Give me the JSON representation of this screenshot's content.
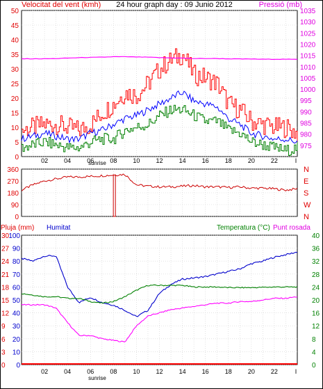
{
  "chart_data": [
    {
      "type": "line",
      "title": "24 hour graph day : 09 Junio 2012",
      "left_label": "Velocitat del vent (kmh)",
      "right_label": "Pressió (mb)",
      "ylim_left": [
        0,
        50
      ],
      "ylim_right": [
        970,
        1035
      ],
      "left_ticks": [
        "0",
        "5",
        "10",
        "15",
        "20",
        "25",
        "30",
        "35",
        "40",
        "45",
        "50"
      ],
      "right_ticks": [
        "975",
        "980",
        "985",
        "990",
        "995",
        "1000",
        "1005",
        "1010",
        "1015",
        "1020",
        "1025",
        "1030",
        "1035"
      ],
      "x_ticks": [
        "02",
        "04",
        "06",
        "08",
        "10",
        "12",
        "14",
        "16",
        "18",
        "20",
        "22",
        "I"
      ],
      "x_extra_label": "sunrise",
      "hours": [
        0,
        1,
        2,
        3,
        4,
        5,
        6,
        7,
        8,
        9,
        10,
        11,
        12,
        13,
        14,
        15,
        16,
        17,
        18,
        19,
        20,
        21,
        22,
        23,
        24
      ],
      "series": [
        {
          "key": "gust",
          "color": "#ff0000",
          "values": [
            9,
            10,
            11,
            11,
            10,
            9,
            11,
            15,
            18,
            22,
            21,
            25,
            30,
            33,
            35,
            28,
            27,
            25,
            18,
            16,
            12,
            11,
            10,
            10,
            8
          ]
        },
        {
          "key": "wind",
          "color": "#0000ff",
          "values": [
            6,
            7,
            8,
            7,
            6,
            6,
            8,
            9,
            11,
            13,
            14,
            16,
            18,
            20,
            22,
            19,
            18,
            17,
            13,
            11,
            8,
            7,
            6,
            6,
            5
          ]
        },
        {
          "key": "gust_dir_mean",
          "color": "#008000",
          "values": [
            3,
            4,
            5,
            4,
            3,
            3,
            5,
            6,
            6,
            9,
            10,
            11,
            14,
            16,
            16,
            14,
            12,
            12,
            9,
            8,
            5,
            4,
            3,
            2,
            3
          ]
        },
        {
          "key": "pressure",
          "color": "#ff00ff",
          "axis": "right",
          "values": [
            1013.5,
            1013.5,
            1013.5,
            1013.6,
            1013.8,
            1014,
            1014.1,
            1014.2,
            1014.4,
            1014.4,
            1014.3,
            1014.2,
            1014,
            1013.9,
            1013.8,
            1013.6,
            1013.6,
            1013.6,
            1013.5,
            1013.4,
            1013.4,
            1013.3,
            1013.3,
            1013.3,
            1013.2
          ]
        }
      ]
    },
    {
      "type": "line",
      "ylim": [
        0,
        360
      ],
      "left_ticks": [
        "0",
        "90",
        "180",
        "270",
        "360"
      ],
      "right_ticks": [
        "N",
        "E",
        "S",
        "W",
        "N"
      ],
      "hours": [
        0,
        1,
        2,
        3,
        4,
        5,
        6,
        7,
        8,
        9,
        10,
        11,
        12,
        13,
        14,
        15,
        16,
        17,
        18,
        19,
        20,
        21,
        22,
        23,
        24
      ],
      "series": [
        {
          "key": "direction",
          "color": "#cc0000",
          "values": [
            200,
            240,
            270,
            285,
            300,
            300,
            305,
            310,
            315,
            320,
            240,
            230,
            225,
            225,
            230,
            235,
            225,
            225,
            220,
            225,
            215,
            215,
            210,
            200,
            210
          ]
        }
      ],
      "drop": {
        "hour": 8.05,
        "value": 0
      }
    },
    {
      "type": "line",
      "left_labels": {
        "rain": "Pluja (mm)",
        "hum": "Humitat"
      },
      "right_labels": {
        "temp": "Temperatura (°C)",
        "dew": "Punt rosada"
      },
      "rain_ticks": [
        "0",
        "3",
        "6",
        "9",
        "12",
        "15",
        "18",
        "21",
        "24",
        "27",
        "30"
      ],
      "hum_ticks": [
        "0",
        "10",
        "20",
        "30",
        "40",
        "50",
        "60",
        "70",
        "80",
        "90",
        "100"
      ],
      "right_ticks": [
        "0",
        "4",
        "8",
        "12",
        "16",
        "20",
        "24",
        "28",
        "32",
        "36",
        "40"
      ],
      "hum_lim": [
        0,
        100
      ],
      "temp_lim": [
        0,
        40
      ],
      "hours": [
        0,
        1,
        2,
        3,
        4,
        5,
        6,
        7,
        8,
        9,
        10,
        11,
        12,
        13,
        14,
        15,
        16,
        17,
        18,
        19,
        20,
        21,
        22,
        23,
        24
      ],
      "series": [
        {
          "key": "humidity",
          "color": "#0000cc",
          "axis": "hum",
          "values": [
            82,
            80,
            84,
            84,
            60,
            48,
            52,
            48,
            46,
            42,
            37,
            42,
            55,
            62,
            66,
            67,
            68,
            70,
            72,
            74,
            78,
            80,
            83,
            85,
            87
          ]
        },
        {
          "key": "temperature",
          "color": "#008000",
          "axis": "temp",
          "values": [
            22,
            21.5,
            21,
            21,
            20.5,
            20.5,
            19.5,
            19,
            19.5,
            21,
            23,
            24.5,
            24.5,
            24.5,
            24.5,
            24,
            24,
            24,
            23.8,
            23.8,
            23.8,
            23.9,
            24,
            24,
            24
          ]
        },
        {
          "key": "dew",
          "color": "#ff00ff",
          "axis": "temp",
          "values": [
            18.5,
            18.5,
            18.5,
            17.5,
            13,
            9,
            9,
            8,
            7.5,
            7,
            12,
            15,
            16,
            17,
            17.5,
            18,
            18.5,
            19,
            19,
            19.5,
            19.5,
            20,
            20.5,
            20.5,
            21
          ]
        },
        {
          "key": "rain",
          "color": "#ff0000",
          "axis": "rain",
          "values": [
            0,
            0,
            0,
            0,
            0,
            0,
            0,
            0,
            0,
            0,
            0,
            0,
            0,
            0,
            0,
            0,
            0,
            0,
            0,
            0,
            0,
            0,
            0,
            0,
            0
          ]
        }
      ]
    }
  ]
}
